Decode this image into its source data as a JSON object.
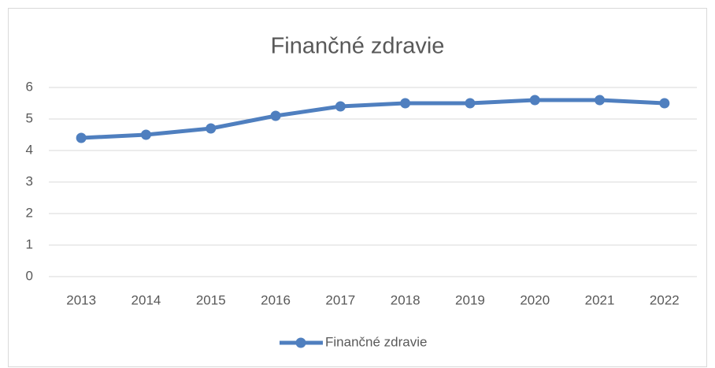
{
  "chart_data": {
    "type": "line",
    "title": "Finančné zdravie",
    "categories": [
      "2013",
      "2014",
      "2015",
      "2016",
      "2017",
      "2018",
      "2019",
      "2020",
      "2021",
      "2022"
    ],
    "series": [
      {
        "name": "Finančné zdravie",
        "color": "#4f7fbf",
        "values": [
          4.4,
          4.5,
          4.7,
          5.1,
          5.4,
          5.5,
          5.5,
          5.6,
          5.6,
          5.5
        ]
      }
    ],
    "ylim": [
      0,
      6
    ],
    "yticks": [
      0,
      1,
      2,
      3,
      4,
      5,
      6
    ],
    "grid": true,
    "legend": "bottom"
  }
}
